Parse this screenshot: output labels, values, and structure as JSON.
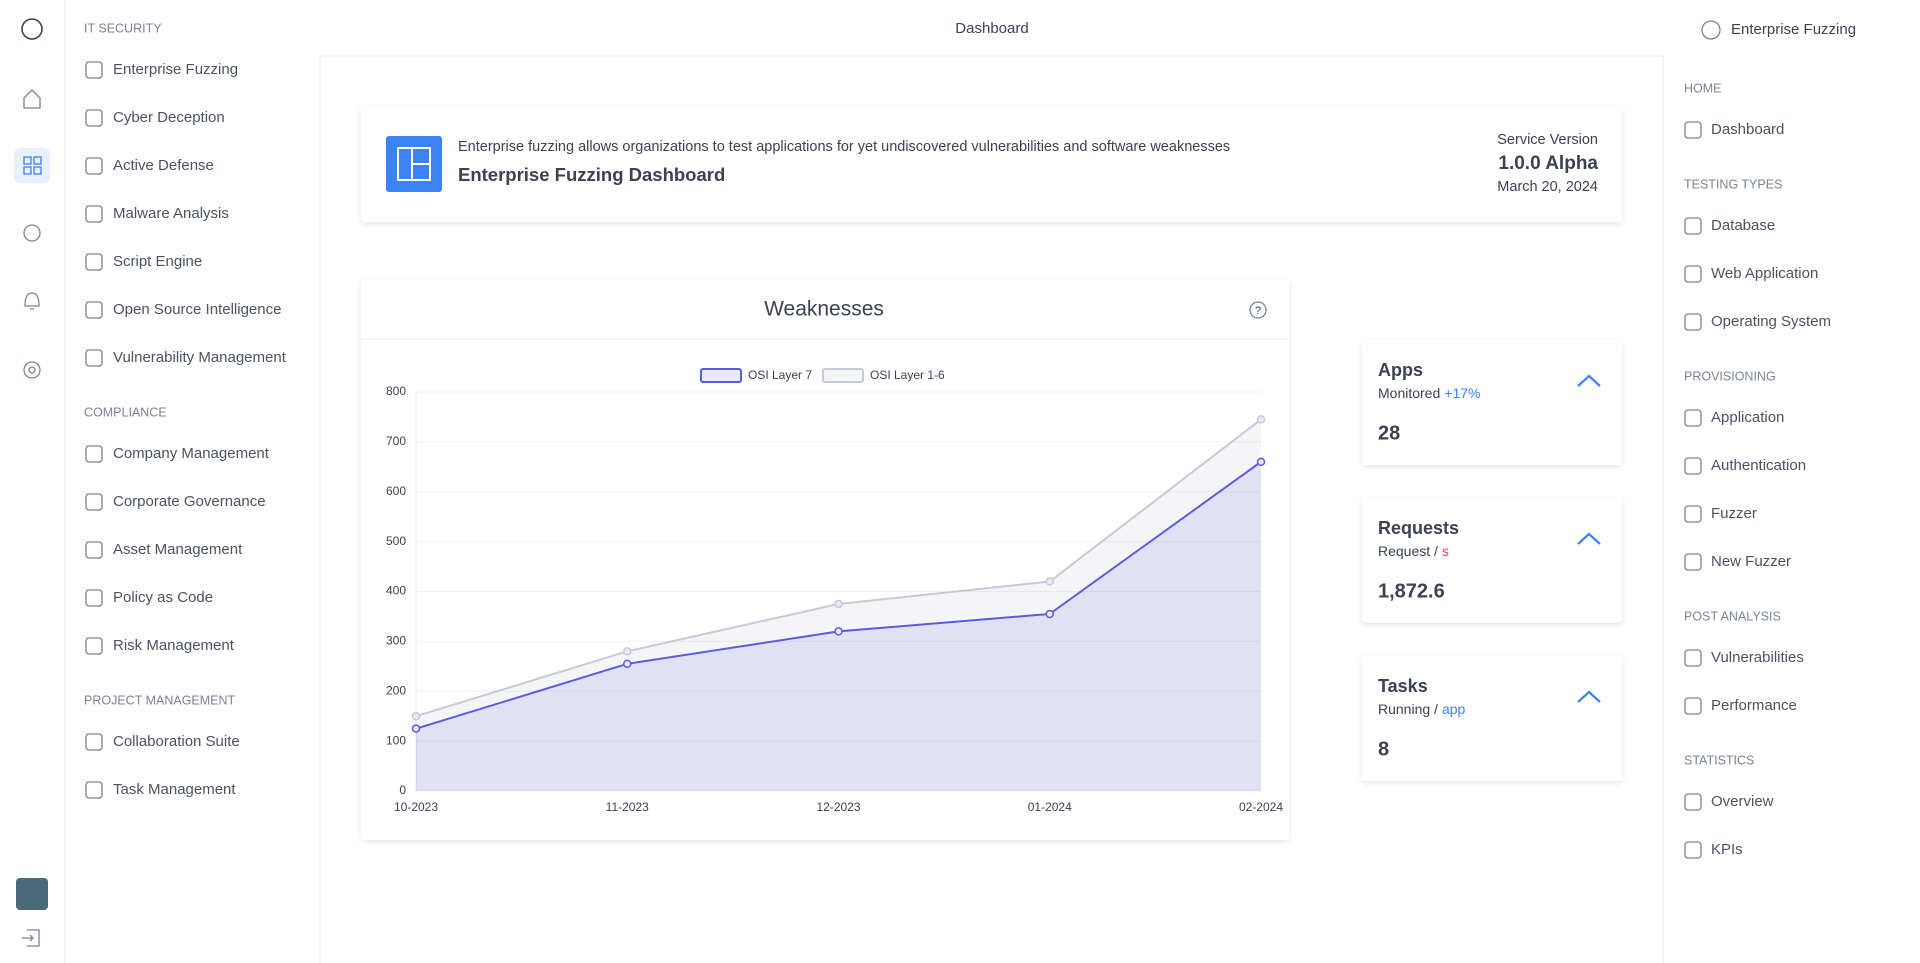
{
  "header": {
    "title": "Dashboard",
    "product": "Enterprise Fuzzing"
  },
  "left_nav": {
    "sections": [
      {
        "label": "IT SECURITY",
        "items": [
          "Enterprise Fuzzing",
          "Cyber Deception",
          "Active Defense",
          "Malware Analysis",
          "Script Engine",
          "Open Source Intelligence",
          "Vulnerability Management"
        ]
      },
      {
        "label": "COMPLIANCE",
        "items": [
          "Company Management",
          "Corporate Governance",
          "Asset Management",
          "Policy as Code",
          "Risk Management"
        ]
      },
      {
        "label": "PROJECT MANAGEMENT",
        "items": [
          "Collaboration Suite",
          "Task Management"
        ]
      }
    ]
  },
  "banner": {
    "description": "Enterprise fuzzing allows organizations to test applications for yet undiscovered vulnerabilities and software weaknesses",
    "title": "Enterprise Fuzzing Dashboard",
    "version_label": "Service Version",
    "version": "1.0.0 Alpha",
    "date": "March 20, 2024"
  },
  "chart_data": {
    "type": "line",
    "title": "Weaknesses",
    "categories": [
      "10-2023",
      "11-2023",
      "12-2023",
      "01-2024",
      "02-2024"
    ],
    "series": [
      {
        "name": "OSI Layer 7",
        "color": "#5b5be0",
        "values": [
          125,
          255,
          320,
          355,
          660
        ]
      },
      {
        "name": "OSI Layer 1-6",
        "color": "#c5cad8",
        "values": [
          150,
          280,
          375,
          420,
          745
        ]
      }
    ],
    "ylim": [
      0,
      800
    ],
    "yticks": [
      0,
      100,
      200,
      300,
      400,
      500,
      600,
      700,
      800
    ],
    "grid": true,
    "area": true,
    "legend": "top"
  },
  "stats": [
    {
      "title": "Apps",
      "subtitle": "Monitored",
      "accent": "+17%",
      "accent_color": "#3b82f6",
      "value": "28"
    },
    {
      "title": "Requests",
      "subtitle": "Request /",
      "accent": "s",
      "accent_color": "#ef4444",
      "value": "1,872.6"
    },
    {
      "title": "Tasks",
      "subtitle": "Running /",
      "accent": "app",
      "accent_color": "#3b82f6",
      "value": "8"
    }
  ],
  "right_nav": {
    "sections": [
      {
        "label": "HOME",
        "items": [
          "Dashboard"
        ]
      },
      {
        "label": "TESTING TYPES",
        "items": [
          "Database",
          "Web Application",
          "Operating System"
        ]
      },
      {
        "label": "PROVISIONING",
        "items": [
          "Application",
          "Authentication",
          "Fuzzer",
          "New Fuzzer"
        ]
      },
      {
        "label": "POST ANALYSIS",
        "items": [
          "Vulnerabilities",
          "Performance"
        ]
      },
      {
        "label": "STATISTICS",
        "items": [
          "Overview",
          "KPIs"
        ]
      }
    ]
  }
}
